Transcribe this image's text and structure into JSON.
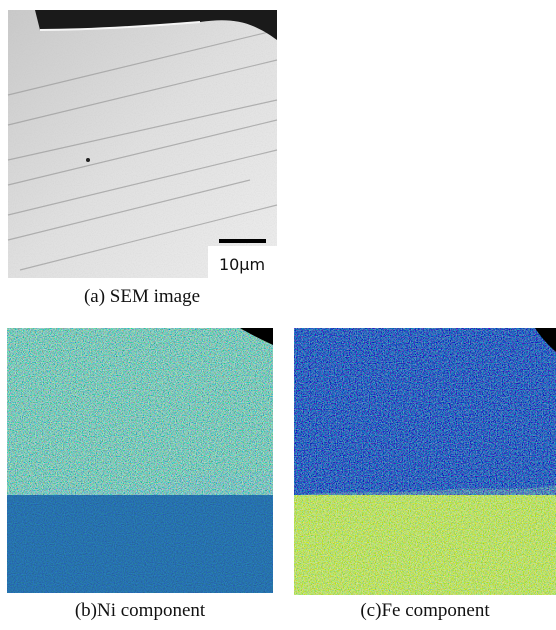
{
  "panels": [
    {
      "caption": "(a) SEM image",
      "scale_bar": "10μm"
    },
    {
      "caption": "(b)Ni component"
    },
    {
      "caption": "(c)Fe component"
    }
  ]
}
